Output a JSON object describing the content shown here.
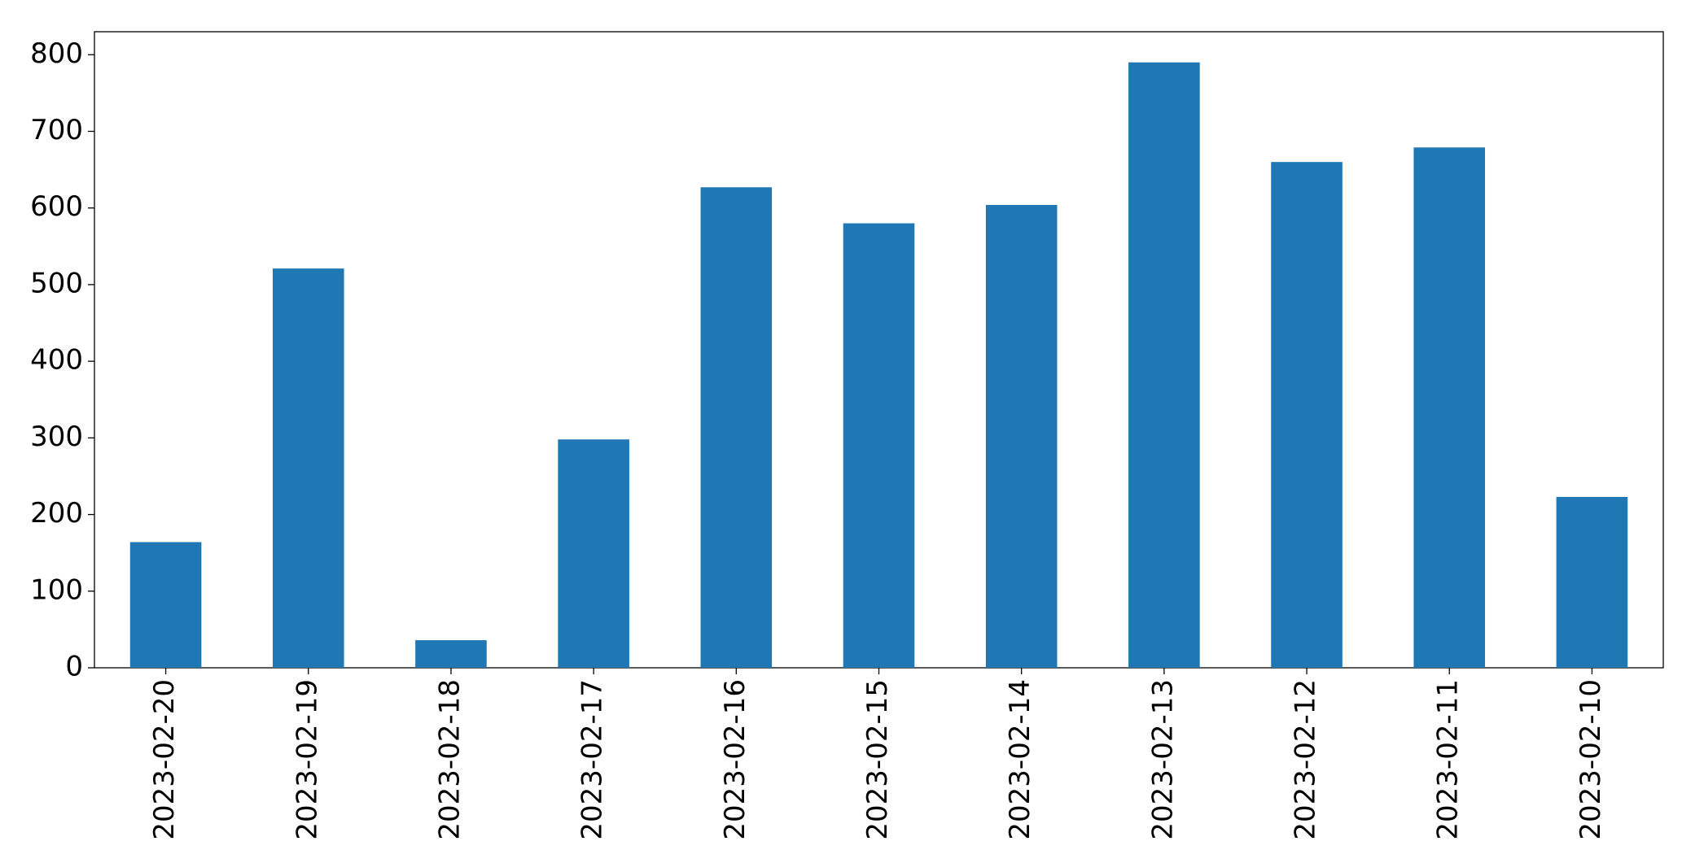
{
  "chart_data": {
    "type": "bar",
    "categories": [
      "2023-02-20",
      "2023-02-19",
      "2023-02-18",
      "2023-02-17",
      "2023-02-16",
      "2023-02-15",
      "2023-02-14",
      "2023-02-13",
      "2023-02-12",
      "2023-02-11",
      "2023-02-10"
    ],
    "values": [
      164,
      521,
      36,
      298,
      627,
      580,
      604,
      790,
      660,
      679,
      223
    ],
    "color": "#1f77b4",
    "ylim": [
      0,
      830
    ],
    "yticks": [
      0,
      100,
      200,
      300,
      400,
      500,
      600,
      700,
      800
    ],
    "grid": false
  }
}
